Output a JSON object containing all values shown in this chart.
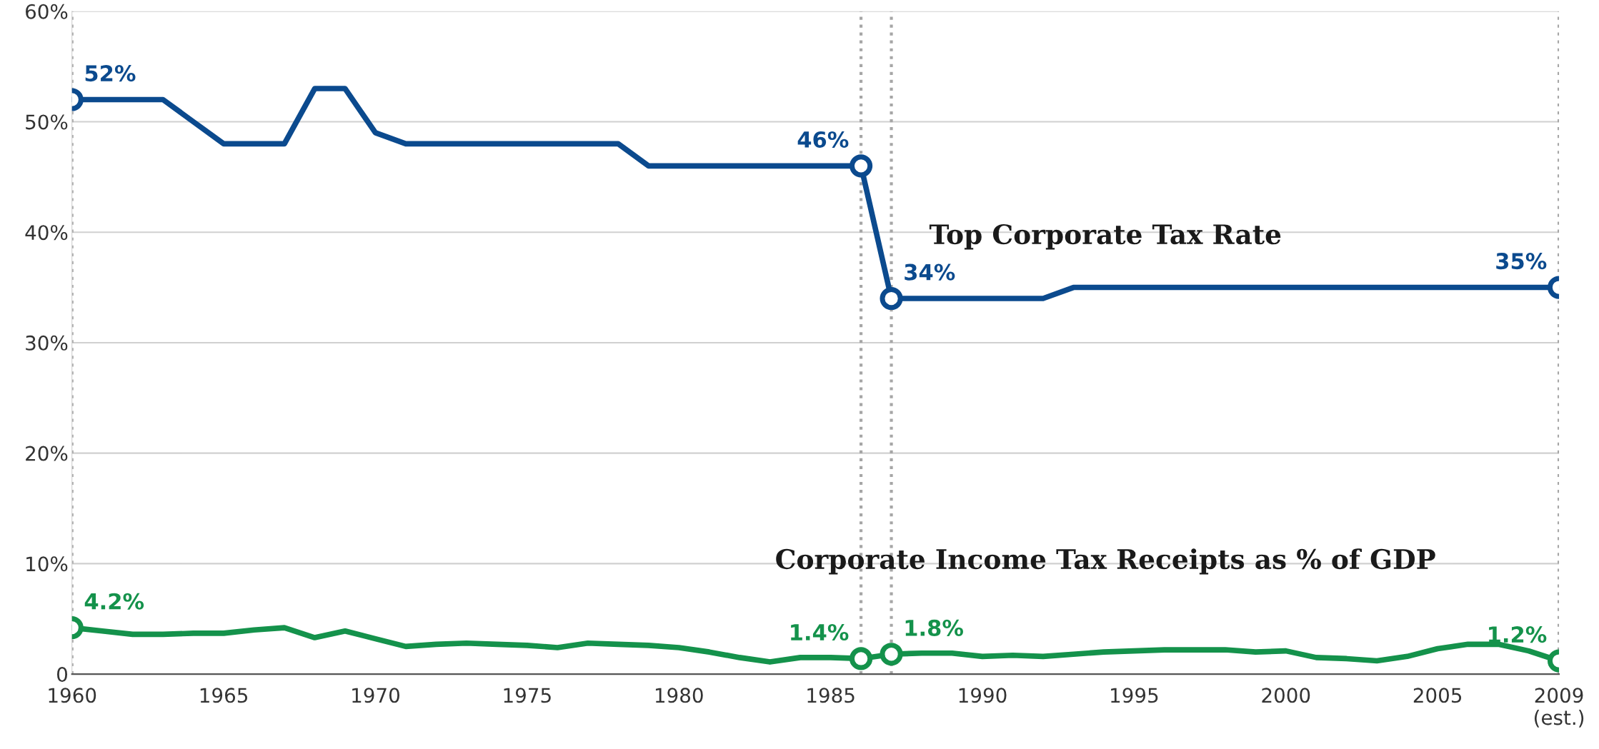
{
  "chart_data": {
    "type": "line",
    "x": [
      1960,
      1961,
      1962,
      1963,
      1964,
      1965,
      1966,
      1967,
      1968,
      1969,
      1970,
      1971,
      1972,
      1973,
      1974,
      1975,
      1976,
      1977,
      1978,
      1979,
      1980,
      1981,
      1982,
      1983,
      1984,
      1985,
      1986,
      1987,
      1988,
      1989,
      1990,
      1991,
      1992,
      1993,
      1994,
      1995,
      1996,
      1997,
      1998,
      1999,
      2000,
      2001,
      2002,
      2003,
      2004,
      2005,
      2006,
      2007,
      2008,
      2009
    ],
    "series": [
      {
        "name": "Top Corporate Tax Rate",
        "color": "#0b4a8e",
        "values": [
          52,
          52,
          52,
          52,
          50,
          48,
          48,
          48,
          53,
          53,
          49,
          48,
          48,
          48,
          48,
          48,
          48,
          48,
          48,
          46,
          46,
          46,
          46,
          46,
          46,
          46,
          46,
          34,
          34,
          34,
          34,
          34,
          34,
          35,
          35,
          35,
          35,
          35,
          35,
          35,
          35,
          35,
          35,
          35,
          35,
          35,
          35,
          35,
          35,
          35
        ]
      },
      {
        "name": "Corporate Income Tax Receipts as % of GDP",
        "color": "#14924b",
        "values": [
          4.2,
          3.9,
          3.6,
          3.6,
          3.7,
          3.7,
          4.0,
          4.2,
          3.3,
          3.9,
          3.2,
          2.5,
          2.7,
          2.8,
          2.7,
          2.6,
          2.4,
          2.8,
          2.7,
          2.6,
          2.4,
          2.0,
          1.5,
          1.1,
          1.5,
          1.5,
          1.4,
          1.8,
          1.9,
          1.9,
          1.6,
          1.7,
          1.6,
          1.8,
          2.0,
          2.1,
          2.2,
          2.2,
          2.2,
          2.0,
          2.1,
          1.5,
          1.4,
          1.2,
          1.6,
          2.3,
          2.7,
          2.7,
          2.1,
          1.2
        ]
      },
      {
        "type": "scatter",
        "marker": "circle",
        "color": "#0b4a8e",
        "x": [
          1960,
          1986,
          1987,
          2009
        ],
        "values": [
          52,
          46,
          34,
          35
        ],
        "value_labels": [
          "52%",
          "46%",
          "34%",
          "35%"
        ]
      },
      {
        "type": "scatter",
        "marker": "circle",
        "color": "#14924b",
        "x": [
          1960,
          1986,
          1987,
          2009
        ],
        "values": [
          4.2,
          1.4,
          1.8,
          1.2
        ],
        "value_labels": [
          "4.2%",
          "1.4%",
          "1.8%",
          "1.2%"
        ]
      }
    ],
    "xlim": [
      1960,
      2009
    ],
    "ylim": [
      0,
      60
    ],
    "xticks": [
      1960,
      1965,
      1970,
      1975,
      1980,
      1985,
      1990,
      1995,
      2000,
      2005,
      {
        "value": 2009,
        "label": "2009\n(est.)"
      }
    ],
    "yticks": [
      {
        "value": 0,
        "label": "0"
      },
      {
        "value": 10,
        "label": "10%"
      },
      {
        "value": 20,
        "label": "20%"
      },
      {
        "value": 30,
        "label": "30%"
      },
      {
        "value": 40,
        "label": "40%"
      },
      {
        "value": 50,
        "label": "50%"
      },
      {
        "value": 60,
        "label": "60%"
      }
    ],
    "ref_lines": [
      {
        "axis": "x",
        "value": 1960,
        "color": "#a6a6a6",
        "line_style": "dotted"
      },
      {
        "axis": "x",
        "value": 1986,
        "color": "#a6a6a6",
        "line_style": "dotted"
      },
      {
        "axis": "x",
        "value": 1987,
        "color": "#a6a6a6",
        "line_style": "dotted"
      },
      {
        "axis": "x",
        "value": 2009,
        "color": "#a6a6a6",
        "line_style": "dotted"
      }
    ],
    "grid": "y",
    "line_style": "solid"
  }
}
